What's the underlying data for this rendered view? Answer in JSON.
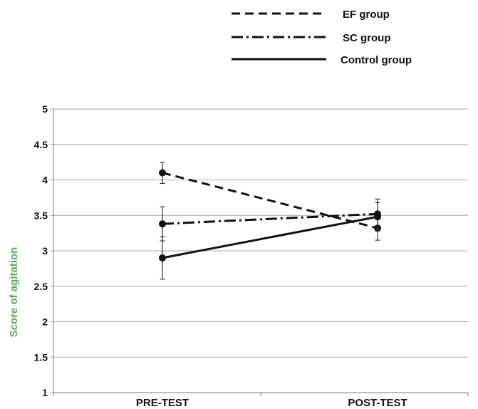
{
  "chart_data": {
    "type": "line",
    "title": "",
    "xlabel": "",
    "ylabel": "Score of agitation",
    "ylabel_color": "#5aa85a",
    "ylim": [
      1,
      5
    ],
    "y_ticks": [
      "1",
      "1.5",
      "2",
      "2.5",
      "3",
      "3.5",
      "4",
      "4.5",
      "5"
    ],
    "categories": [
      "PRE-TEST",
      "POST-TEST"
    ],
    "grid": true,
    "legend_position": "top",
    "series": [
      {
        "name": "EF group",
        "line_style": "dashed",
        "values": [
          4.1,
          3.32
        ],
        "error": [
          0.15,
          0.17
        ]
      },
      {
        "name": "SC group",
        "line_style": "dash-dot",
        "values": [
          3.38,
          3.52
        ],
        "error": [
          0.24,
          0.21
        ]
      },
      {
        "name": "Control group",
        "line_style": "solid",
        "values": [
          2.9,
          3.48
        ],
        "error": [
          0.3,
          0.2
        ]
      }
    ]
  }
}
